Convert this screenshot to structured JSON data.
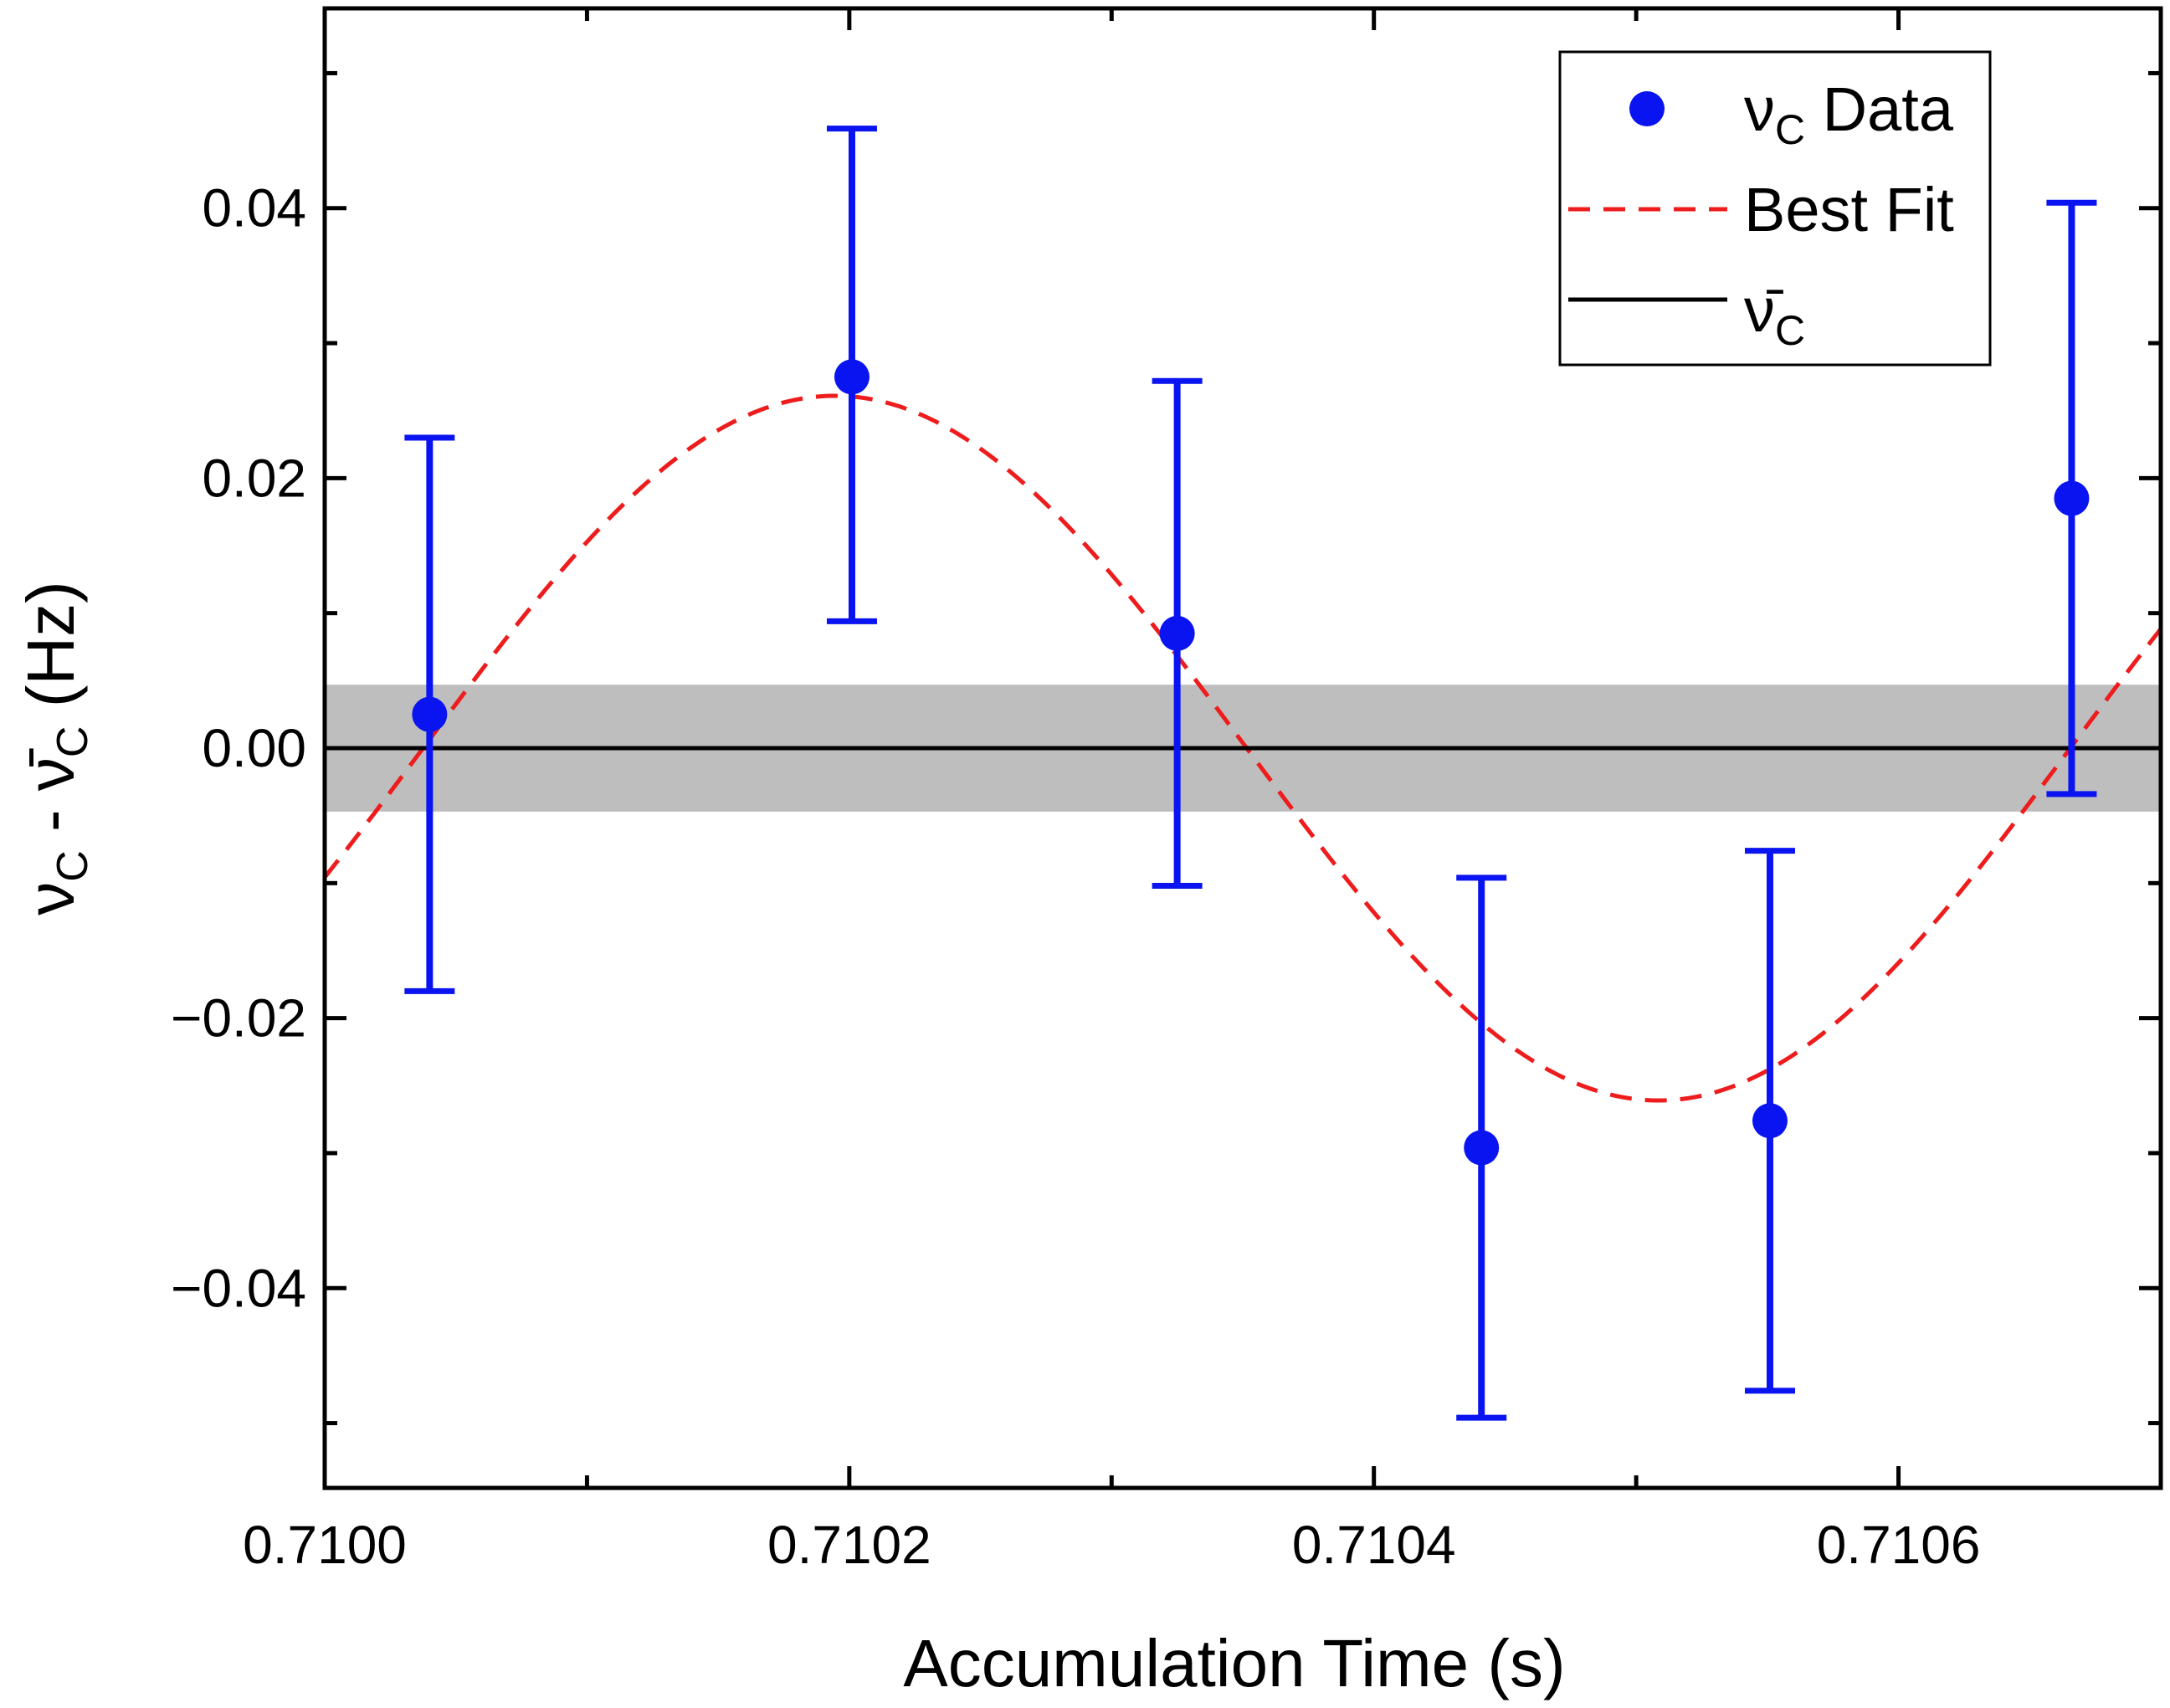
{
  "colors": {
    "data": "#0a14f0",
    "fit": "#ee1c1c",
    "mean": "#000000",
    "band": "#bebebe",
    "background": "#ffffff"
  },
  "chart_data": {
    "type": "scatter",
    "title": "",
    "xlabel": "Accumulation Time (s)",
    "ylabel": "νC - ν̄C (Hz)",
    "xlim": [
      0.71,
      0.7107
    ],
    "ylim": [
      -0.0548,
      0.0548
    ],
    "xticks": [
      0.71,
      0.7102,
      0.7104,
      0.7106
    ],
    "xtick_labels": [
      "0.7100",
      "0.7102",
      "0.7104",
      "0.7106"
    ],
    "xticks_minor": [
      0.7101,
      0.7103,
      0.7105
    ],
    "yticks": [
      -0.04,
      -0.02,
      0.0,
      0.02,
      0.04
    ],
    "ytick_labels": [
      "−0.04",
      "−0.02",
      "0.00",
      "0.02",
      "0.04"
    ],
    "yticks_minor": [
      -0.05,
      -0.03,
      -0.01,
      0.01,
      0.03,
      0.05
    ],
    "grid": false,
    "legend_position": "top-right",
    "series": [
      {
        "name": "νC Data",
        "kind": "points-with-errorbars",
        "points": [
          {
            "x": 0.71004,
            "y": 0.0025,
            "err_low": 0.0205,
            "err_high": 0.0205
          },
          {
            "x": 0.710201,
            "y": 0.0275,
            "err_low": 0.0181,
            "err_high": 0.0184
          },
          {
            "x": 0.710325,
            "y": 0.0085,
            "err_low": 0.0187,
            "err_high": 0.0187
          },
          {
            "x": 0.710441,
            "y": -0.0296,
            "err_low": 0.02,
            "err_high": 0.02
          },
          {
            "x": 0.710551,
            "y": -0.0276,
            "err_low": 0.02,
            "err_high": 0.02
          },
          {
            "x": 0.710666,
            "y": 0.0185,
            "err_low": 0.0219,
            "err_high": 0.0219
          }
        ]
      },
      {
        "name": "Best Fit",
        "kind": "sine-curve",
        "amplitude": 0.0261,
        "period": 0.000628,
        "zero_crossing_x": 0.7100375,
        "baseline": 0.0
      },
      {
        "name": "ν̄C",
        "kind": "hline",
        "y": 0.0,
        "band_half_width": 0.0047
      }
    ],
    "legend": {
      "entries": [
        {
          "symbol": "ν",
          "subscript": "C",
          "suffix": " Data"
        },
        {
          "label": "Best Fit"
        },
        {
          "symbol": "ν̄",
          "subscript": "C"
        }
      ]
    }
  }
}
